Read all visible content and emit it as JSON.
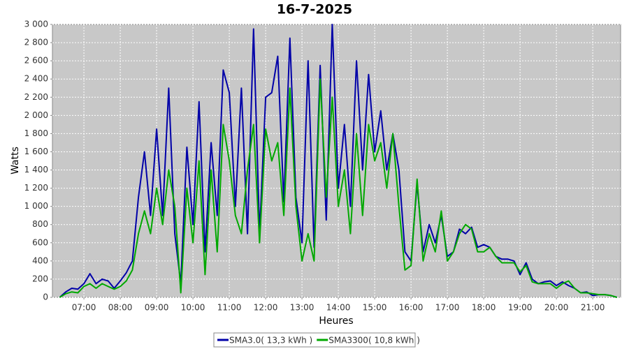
{
  "chart_data": {
    "type": "line",
    "title": "16-7-2025",
    "x_label": "Heures",
    "y_label": "Watts",
    "x": [
      "06:20",
      "06:30",
      "06:40",
      "06:50",
      "07:00",
      "07:10",
      "07:20",
      "07:30",
      "07:40",
      "07:50",
      "08:00",
      "08:10",
      "08:20",
      "08:30",
      "08:40",
      "08:50",
      "09:00",
      "09:10",
      "09:20",
      "09:30",
      "09:40",
      "09:50",
      "10:00",
      "10:10",
      "10:20",
      "10:30",
      "10:40",
      "10:50",
      "11:00",
      "11:10",
      "11:20",
      "11:30",
      "11:40",
      "11:50",
      "12:00",
      "12:10",
      "12:20",
      "12:30",
      "12:40",
      "12:50",
      "13:00",
      "13:10",
      "13:20",
      "13:30",
      "13:40",
      "13:50",
      "14:00",
      "14:10",
      "14:20",
      "14:30",
      "14:40",
      "14:50",
      "15:00",
      "15:10",
      "15:20",
      "15:30",
      "15:40",
      "15:50",
      "16:00",
      "16:10",
      "16:20",
      "16:30",
      "16:40",
      "16:50",
      "17:00",
      "17:10",
      "17:20",
      "17:30",
      "17:40",
      "17:50",
      "18:00",
      "18:10",
      "18:20",
      "18:30",
      "18:40",
      "18:50",
      "19:00",
      "19:10",
      "19:20",
      "19:30",
      "19:40",
      "19:50",
      "20:00",
      "20:10",
      "20:20",
      "20:30",
      "20:40",
      "20:50",
      "21:00",
      "21:10",
      "21:20",
      "21:30",
      "21:40"
    ],
    "series": [
      {
        "name": "SMA3.0( 13,3 kWh )",
        "color": "#0000a8",
        "values": [
          0,
          60,
          100,
          90,
          150,
          260,
          150,
          200,
          180,
          100,
          180,
          270,
          400,
          1100,
          1600,
          900,
          1850,
          900,
          2300,
          700,
          150,
          1650,
          800,
          2150,
          500,
          1700,
          900,
          2500,
          2250,
          1000,
          2300,
          700,
          2950,
          700,
          2200,
          2250,
          2650,
          1050,
          2850,
          1100,
          600,
          2600,
          550,
          2550,
          850,
          3000,
          1200,
          1900,
          1000,
          2600,
          1400,
          2450,
          1600,
          2050,
          1400,
          1800,
          1400,
          500,
          400,
          1250,
          500,
          800,
          600,
          900,
          450,
          500,
          750,
          700,
          770,
          550,
          580,
          550,
          450,
          420,
          420,
          400,
          250,
          380,
          200,
          150,
          170,
          180,
          130,
          170,
          130,
          100,
          50,
          60,
          20,
          30,
          30,
          20,
          0
        ]
      },
      {
        "name": "SMA3300( 10,8 kWh )",
        "color": "#00a800",
        "values": [
          0,
          40,
          60,
          50,
          120,
          150,
          100,
          150,
          120,
          90,
          120,
          180,
          300,
          700,
          950,
          700,
          1200,
          800,
          1400,
          1000,
          50,
          1200,
          600,
          1500,
          250,
          1400,
          500,
          1900,
          1500,
          900,
          700,
          1400,
          1900,
          600,
          1850,
          1500,
          1700,
          900,
          2300,
          1000,
          400,
          700,
          400,
          2400,
          1100,
          2200,
          1000,
          1400,
          700,
          1800,
          900,
          1900,
          1500,
          1700,
          1200,
          1800,
          1000,
          300,
          350,
          1300,
          400,
          700,
          500,
          950,
          400,
          500,
          700,
          800,
          750,
          500,
          500,
          550,
          450,
          380,
          380,
          380,
          280,
          350,
          170,
          150,
          150,
          150,
          100,
          150,
          180,
          100,
          50,
          50,
          40,
          30,
          30,
          20,
          0
        ]
      }
    ],
    "xlim": [
      "06:08",
      "21:46"
    ],
    "xticks": [
      "07:00",
      "08:00",
      "09:00",
      "10:00",
      "11:00",
      "12:00",
      "13:00",
      "14:00",
      "15:00",
      "16:00",
      "17:00",
      "18:00",
      "19:00",
      "20:00",
      "21:00"
    ],
    "ylim": [
      0,
      3000
    ],
    "yticks": [
      0,
      200,
      400,
      600,
      800,
      {
        "value": 1000,
        "label": "1 000"
      },
      {
        "value": 1200,
        "label": "1 200"
      },
      {
        "value": 1400,
        "label": "1 400"
      },
      {
        "value": 1600,
        "label": "1 600"
      },
      {
        "value": 1800,
        "label": "1 800"
      },
      {
        "value": 2000,
        "label": "2 000"
      },
      {
        "value": 2200,
        "label": "2 200"
      },
      {
        "value": 2400,
        "label": "2 400"
      },
      {
        "value": 2600,
        "label": "2 600"
      },
      {
        "value": 2800,
        "label": "2 800"
      },
      {
        "value": 3000,
        "label": "3 000"
      }
    ],
    "grid": true,
    "legend": "bottom"
  }
}
